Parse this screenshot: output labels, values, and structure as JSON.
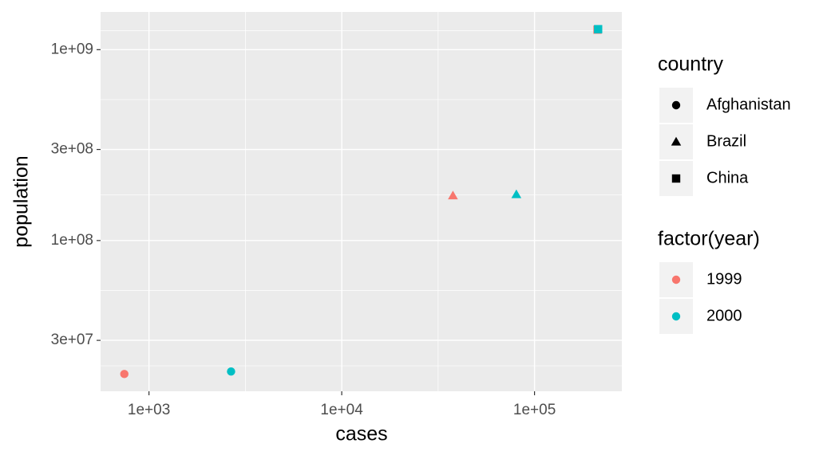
{
  "chart_data": {
    "type": "scatter",
    "x_label": "cases",
    "y_label": "population",
    "x": [
      745,
      2666,
      37737,
      80488,
      212258,
      213766
    ],
    "y": [
      19987071,
      20595360,
      172006362,
      174504898,
      1272915272,
      1280428583
    ],
    "country": [
      "Afghanistan",
      "Afghanistan",
      "Brazil",
      "Brazil",
      "China",
      "China"
    ],
    "year": [
      "1999",
      "2000",
      "1999",
      "2000",
      "1999",
      "2000"
    ],
    "log_x": true,
    "log_y": true,
    "grid": true,
    "xlim": [
      561,
      283800
    ],
    "ylim": [
      16230000,
      1576000000
    ],
    "xticks": [
      {
        "value": 1000,
        "label": "1e+03"
      },
      {
        "value": 10000,
        "label": "1e+04"
      },
      {
        "value": 100000,
        "label": "1e+05"
      }
    ],
    "yticks": [
      {
        "value": 30000000,
        "label": "3e+07"
      },
      {
        "value": 100000000,
        "label": "1e+08"
      },
      {
        "value": 300000000,
        "label": "3e+08"
      },
      {
        "value": 1000000000,
        "label": "1e+09"
      }
    ],
    "legends": [
      {
        "title": "country",
        "entries": [
          "Afghanistan",
          "Brazil",
          "China"
        ],
        "shapes": [
          "circle",
          "triangle",
          "square"
        ]
      },
      {
        "title": "factor(year)",
        "entries": [
          "1999",
          "2000"
        ],
        "colors": [
          "#f8766d",
          "#00bfc4"
        ]
      }
    ],
    "legend_position": "right"
  }
}
